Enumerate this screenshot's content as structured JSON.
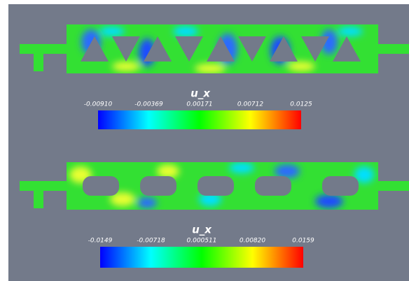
{
  "panels": [
    {
      "colorbar": {
        "title": "u_x",
        "ticks": [
          "-0.00910",
          "-0.00369",
          "0.00171",
          "0.00712",
          "0.0125"
        ]
      }
    },
    {
      "colorbar": {
        "title": "u_x",
        "ticks": [
          "-0.0149",
          "-0.00718",
          "0.000511",
          "0.00820",
          "0.0159"
        ]
      }
    }
  ]
}
